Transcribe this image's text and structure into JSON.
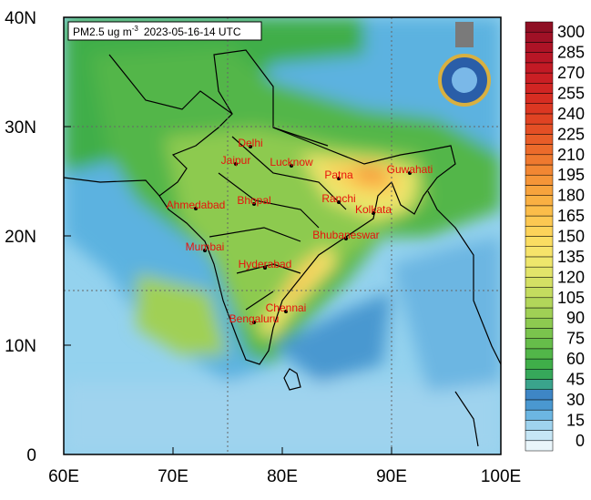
{
  "map": {
    "title": {
      "text": "PM2.5 ug m",
      "superscript": "-3",
      "time": "2023-05-16-14 UTC"
    },
    "xlim": [
      60,
      100
    ],
    "ylim": [
      0,
      40
    ],
    "xticks": [
      {
        "value": 60,
        "label": "60E"
      },
      {
        "value": 70,
        "label": "70E"
      },
      {
        "value": 80,
        "label": "80E"
      },
      {
        "value": 90,
        "label": "90E"
      },
      {
        "value": 100,
        "label": "100E"
      }
    ],
    "yticks": [
      0,
      {
        "value": 10,
        "label": "10N"
      },
      {
        "value": 20,
        "label": "20N"
      },
      {
        "value": 30,
        "label": "30N"
      },
      {
        "value": 40,
        "label": "40N"
      }
    ],
    "cities": [
      "Delhi",
      "Jaipur",
      "Lucknow",
      "Patna",
      "Guwahati",
      "Ahmedabad",
      "Bhopal",
      "Ranchi",
      "Kolkata",
      "Bhubaneswar",
      "Mumbai",
      "Hyderabad",
      "Chennai",
      "Bengaluru"
    ],
    "colorbar": {
      "levels": [
        0,
        15,
        30,
        45,
        60,
        75,
        90,
        105,
        120,
        135,
        150,
        165,
        180,
        195,
        210,
        225,
        240,
        255,
        270,
        285,
        300
      ],
      "colors": [
        "#eaf6fb",
        "#c6e6f5",
        "#9fd3ee",
        "#6cb6e2",
        "#4a98d0",
        "#3e86c5",
        "#3aa38c",
        "#36a85a",
        "#3fae49",
        "#52b649",
        "#66bd4a",
        "#7ac44d",
        "#8dca50",
        "#a0d055",
        "#b2d65a",
        "#c4dc5f",
        "#d4e064",
        "#e2e46a",
        "#eee66c",
        "#f6e36a",
        "#fadd62",
        "#fcd35a",
        "#fcc852",
        "#fbbd4a",
        "#f9b043",
        "#f7a33d",
        "#f59538",
        "#f28733",
        "#ef792f",
        "#ec6b2b",
        "#e85d28",
        "#e44f25",
        "#e04323",
        "#dc3722",
        "#d72d22",
        "#d12523",
        "#ca1f24",
        "#c21a25",
        "#b81626",
        "#ad1326",
        "#a01126",
        "#8f0f24"
      ]
    }
  }
}
